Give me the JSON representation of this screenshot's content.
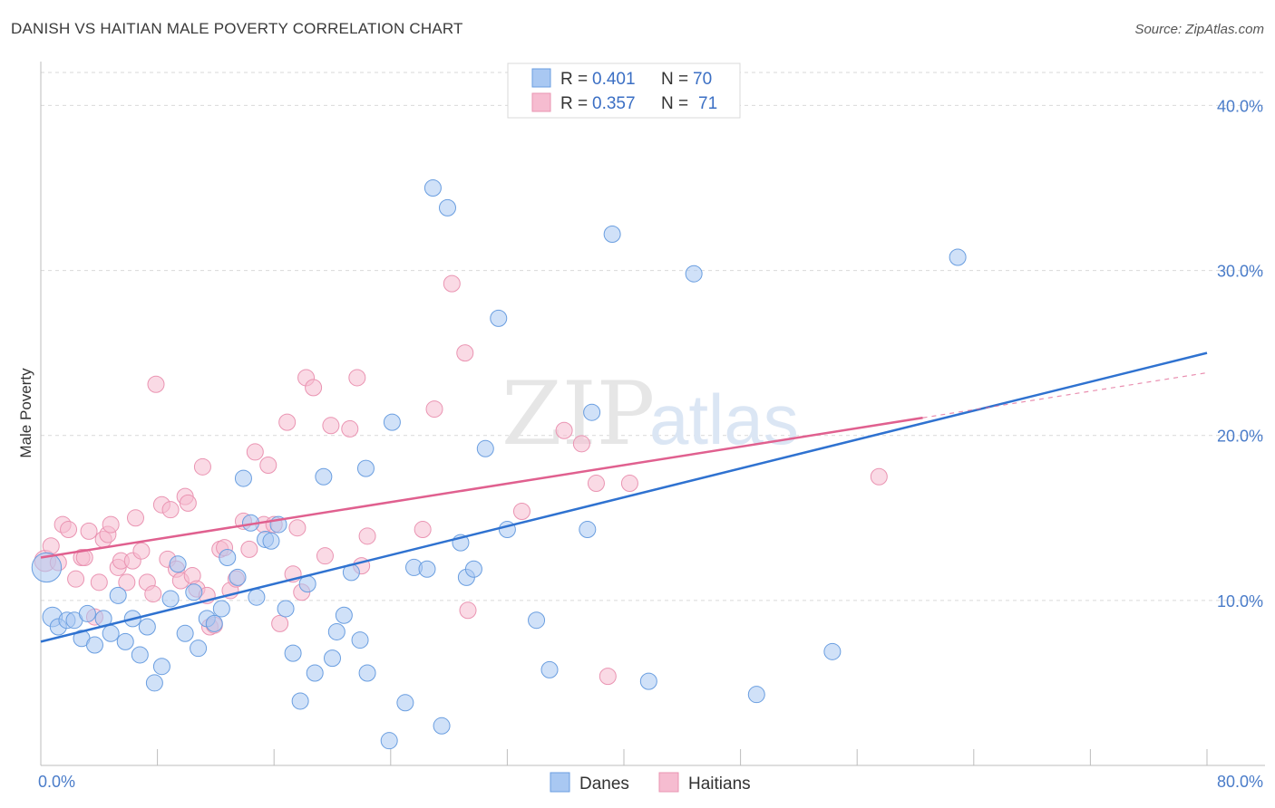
{
  "header": {
    "title": "DANISH VS HAITIAN MALE POVERTY CORRELATION CHART",
    "source": "Source: ZipAtlas.com"
  },
  "watermark": {
    "zip": "ZIP",
    "atlas": "atlas"
  },
  "legend": {
    "rows": [
      {
        "r_label": "R =",
        "r_value": "0.401",
        "n_label": "N =",
        "n_value": "70",
        "color": "#a9c8f2"
      },
      {
        "r_label": "R =",
        "r_value": "0.357",
        "n_label": "N =",
        "n_value": "71",
        "color": "#f6bcd0"
      }
    ]
  },
  "bottom_legend": [
    "Danes",
    "Haitians"
  ],
  "colors": {
    "danes_fill": "#a9c8f2",
    "danes_stroke": "#6a9ee0",
    "danes_line": "#2f72d0",
    "haitians_fill": "#f6bcd0",
    "haitians_stroke": "#ea94b2",
    "haitians_line": "#e0608f",
    "tick_text": "#4a7cc9",
    "grid": "#d9d9d9"
  },
  "chart_data": {
    "type": "scatter",
    "title": "DANISH VS HAITIAN MALE POVERTY CORRELATION CHART",
    "xlabel": "",
    "ylabel": "Male Poverty",
    "xlim": [
      0,
      80
    ],
    "ylim": [
      0,
      42
    ],
    "x_tick_labels": [
      "0.0%",
      "80.0%"
    ],
    "y_ticks": [
      10,
      20,
      30,
      40
    ],
    "y_tick_labels": [
      "10.0%",
      "20.0%",
      "30.0%",
      "40.0%"
    ],
    "grid": true,
    "legend_placement": "top-center",
    "series": [
      {
        "name": "Danes",
        "r": 0.401,
        "n": 70,
        "trend": {
          "x": [
            0,
            80
          ],
          "y": [
            7.5,
            25.0
          ]
        },
        "points": [
          [
            0.4,
            12.0,
            1.8
          ],
          [
            0.8,
            9.0,
            1.2
          ],
          [
            1.2,
            8.4,
            1
          ],
          [
            1.8,
            8.8,
            1
          ],
          [
            2.3,
            8.8,
            1
          ],
          [
            2.8,
            7.7,
            1
          ],
          [
            3.2,
            9.2,
            1
          ],
          [
            3.7,
            7.3,
            1
          ],
          [
            4.3,
            8.9,
            1
          ],
          [
            4.8,
            8.0,
            1
          ],
          [
            5.3,
            10.3,
            1
          ],
          [
            5.8,
            7.5,
            1
          ],
          [
            6.3,
            8.9,
            1
          ],
          [
            6.8,
            6.7,
            1
          ],
          [
            7.3,
            8.4,
            1
          ],
          [
            7.8,
            5.0,
            1
          ],
          [
            8.3,
            6.0,
            1
          ],
          [
            8.9,
            10.1,
            1
          ],
          [
            9.4,
            12.2,
            1
          ],
          [
            9.9,
            8.0,
            1
          ],
          [
            10.5,
            10.5,
            1
          ],
          [
            10.8,
            7.1,
            1
          ],
          [
            11.4,
            8.9,
            1
          ],
          [
            11.9,
            8.6,
            1
          ],
          [
            12.4,
            9.5,
            1
          ],
          [
            12.8,
            12.6,
            1
          ],
          [
            13.5,
            11.4,
            1
          ],
          [
            13.9,
            17.4,
            1
          ],
          [
            14.4,
            14.7,
            1
          ],
          [
            14.8,
            10.2,
            1
          ],
          [
            15.4,
            13.7,
            1
          ],
          [
            15.8,
            13.6,
            1
          ],
          [
            16.3,
            14.6,
            1
          ],
          [
            16.8,
            9.5,
            1
          ],
          [
            17.3,
            6.8,
            1
          ],
          [
            17.8,
            3.9,
            1
          ],
          [
            18.3,
            11.0,
            1
          ],
          [
            18.8,
            5.6,
            1
          ],
          [
            19.4,
            17.5,
            1
          ],
          [
            20.0,
            6.5,
            1
          ],
          [
            20.3,
            8.1,
            1
          ],
          [
            20.8,
            9.1,
            1
          ],
          [
            21.3,
            11.7,
            1
          ],
          [
            21.9,
            7.6,
            1
          ],
          [
            22.3,
            18.0,
            1
          ],
          [
            22.4,
            5.6,
            1
          ],
          [
            23.9,
            1.5,
            1
          ],
          [
            24.1,
            20.8,
            1
          ],
          [
            25.0,
            3.8,
            1
          ],
          [
            25.6,
            12.0,
            1
          ],
          [
            26.5,
            11.9,
            1
          ],
          [
            26.9,
            35.0,
            1
          ],
          [
            27.5,
            2.4,
            1
          ],
          [
            27.9,
            33.8,
            1
          ],
          [
            28.8,
            13.5,
            1
          ],
          [
            29.2,
            11.4,
            1
          ],
          [
            29.7,
            11.9,
            1
          ],
          [
            30.5,
            19.2,
            1
          ],
          [
            31.4,
            27.1,
            1
          ],
          [
            32.0,
            14.3,
            1
          ],
          [
            34.0,
            8.8,
            1
          ],
          [
            34.9,
            5.8,
            1
          ],
          [
            37.5,
            14.3,
            1
          ],
          [
            37.8,
            21.4,
            1
          ],
          [
            39.2,
            32.2,
            1
          ],
          [
            41.7,
            5.1,
            1
          ],
          [
            44.8,
            29.8,
            1
          ],
          [
            49.1,
            4.3,
            1
          ],
          [
            54.3,
            6.9,
            1
          ],
          [
            62.9,
            30.8,
            1
          ]
        ]
      },
      {
        "name": "Haitians",
        "r": 0.357,
        "n": 71,
        "trend": {
          "x": [
            0,
            80
          ],
          "y": [
            12.6,
            23.8
          ],
          "solid_until_x": 60.5
        },
        "points": [
          [
            0.3,
            12.4,
            1.3
          ],
          [
            0.7,
            13.3,
            1
          ],
          [
            1.2,
            12.3,
            1
          ],
          [
            1.5,
            14.6,
            1
          ],
          [
            1.9,
            14.3,
            1
          ],
          [
            2.4,
            11.3,
            1
          ],
          [
            2.8,
            12.6,
            1
          ],
          [
            3.0,
            12.6,
            1
          ],
          [
            3.3,
            14.2,
            1
          ],
          [
            3.7,
            9.0,
            1
          ],
          [
            4.0,
            11.1,
            1
          ],
          [
            4.3,
            13.7,
            1
          ],
          [
            4.6,
            14.0,
            1
          ],
          [
            4.8,
            14.6,
            1
          ],
          [
            5.3,
            12.0,
            1
          ],
          [
            5.5,
            12.4,
            1
          ],
          [
            5.9,
            11.1,
            1
          ],
          [
            6.3,
            12.4,
            1
          ],
          [
            6.5,
            15.0,
            1
          ],
          [
            6.9,
            13.0,
            1
          ],
          [
            7.3,
            11.1,
            1
          ],
          [
            7.7,
            10.4,
            1
          ],
          [
            7.9,
            23.1,
            1
          ],
          [
            8.3,
            15.8,
            1
          ],
          [
            8.7,
            12.5,
            1
          ],
          [
            8.9,
            15.5,
            1
          ],
          [
            9.3,
            11.9,
            1
          ],
          [
            9.6,
            11.2,
            1
          ],
          [
            9.9,
            16.3,
            1
          ],
          [
            10.1,
            15.9,
            1
          ],
          [
            10.4,
            11.5,
            1
          ],
          [
            10.7,
            10.7,
            1
          ],
          [
            11.1,
            18.1,
            1
          ],
          [
            11.4,
            10.3,
            1
          ],
          [
            11.6,
            8.4,
            1
          ],
          [
            11.9,
            8.5,
            1
          ],
          [
            12.3,
            13.1,
            1
          ],
          [
            12.6,
            13.2,
            1
          ],
          [
            13.0,
            10.6,
            1
          ],
          [
            13.4,
            11.3,
            1
          ],
          [
            13.9,
            14.8,
            1
          ],
          [
            14.3,
            13.1,
            1
          ],
          [
            14.7,
            19.0,
            1
          ],
          [
            15.3,
            14.6,
            1
          ],
          [
            15.6,
            18.2,
            1
          ],
          [
            16.0,
            14.6,
            1
          ],
          [
            16.4,
            8.6,
            1
          ],
          [
            16.9,
            20.8,
            1
          ],
          [
            17.3,
            11.6,
            1
          ],
          [
            17.6,
            14.4,
            1
          ],
          [
            17.9,
            10.5,
            1
          ],
          [
            18.2,
            23.5,
            1
          ],
          [
            18.7,
            22.9,
            1
          ],
          [
            19.5,
            12.7,
            1
          ],
          [
            19.9,
            20.6,
            1
          ],
          [
            21.2,
            20.4,
            1
          ],
          [
            21.7,
            23.5,
            1
          ],
          [
            22.0,
            12.1,
            1
          ],
          [
            22.4,
            13.9,
            1
          ],
          [
            26.2,
            14.3,
            1
          ],
          [
            27.0,
            21.6,
            1
          ],
          [
            28.2,
            29.2,
            1
          ],
          [
            29.1,
            25.0,
            1
          ],
          [
            29.3,
            9.4,
            1
          ],
          [
            33.0,
            15.4,
            1
          ],
          [
            35.9,
            20.3,
            1
          ],
          [
            37.1,
            19.5,
            1
          ],
          [
            38.1,
            17.1,
            1
          ],
          [
            38.9,
            5.4,
            1
          ],
          [
            40.4,
            17.1,
            1
          ],
          [
            57.5,
            17.5,
            1
          ]
        ]
      }
    ]
  }
}
